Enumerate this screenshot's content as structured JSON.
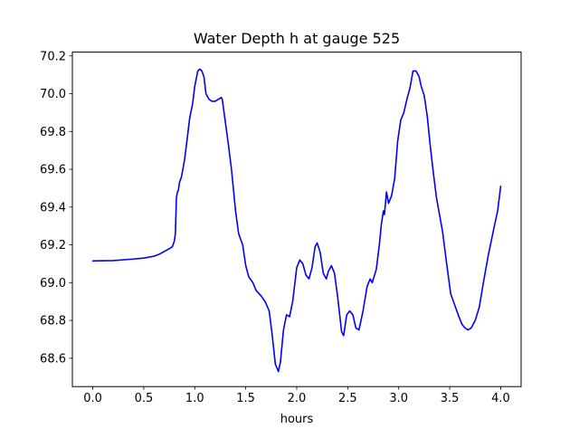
{
  "chart_data": {
    "type": "line",
    "title": "Water Depth h at gauge 525",
    "xlabel": "hours",
    "ylabel": "",
    "xlim": [
      -0.2,
      4.2
    ],
    "ylim": [
      68.45,
      70.22
    ],
    "grid": false,
    "legend": "none",
    "x_ticks": [
      {
        "value": 0.0,
        "label": "0.0"
      },
      {
        "value": 0.5,
        "label": "0.5"
      },
      {
        "value": 1.0,
        "label": "1.0"
      },
      {
        "value": 1.5,
        "label": "1.5"
      },
      {
        "value": 2.0,
        "label": "2.0"
      },
      {
        "value": 2.5,
        "label": "2.5"
      },
      {
        "value": 3.0,
        "label": "3.0"
      },
      {
        "value": 3.5,
        "label": "3.5"
      },
      {
        "value": 4.0,
        "label": "4.0"
      }
    ],
    "y_ticks": [
      {
        "value": 68.6,
        "label": "68.6"
      },
      {
        "value": 68.8,
        "label": "68.8"
      },
      {
        "value": 69.0,
        "label": "69.0"
      },
      {
        "value": 69.2,
        "label": "69.2"
      },
      {
        "value": 69.4,
        "label": "69.4"
      },
      {
        "value": 69.6,
        "label": "69.6"
      },
      {
        "value": 69.8,
        "label": "69.8"
      },
      {
        "value": 70.0,
        "label": "70.0"
      },
      {
        "value": 70.2,
        "label": "70.2"
      }
    ],
    "series": [
      {
        "color": "#0000ff",
        "x": [
          0.0,
          0.2,
          0.4,
          0.5,
          0.6,
          0.65,
          0.7,
          0.75,
          0.78,
          0.8,
          0.81,
          0.82,
          0.83,
          0.84,
          0.85,
          0.87,
          0.9,
          0.93,
          0.95,
          0.98,
          1.0,
          1.03,
          1.05,
          1.07,
          1.09,
          1.11,
          1.14,
          1.17,
          1.2,
          1.23,
          1.26,
          1.27,
          1.3,
          1.33,
          1.36,
          1.4,
          1.43,
          1.47,
          1.5,
          1.53,
          1.57,
          1.6,
          1.65,
          1.69,
          1.73,
          1.76,
          1.79,
          1.82,
          1.84,
          1.87,
          1.9,
          1.93,
          1.96,
          2.0,
          2.03,
          2.06,
          2.09,
          2.12,
          2.15,
          2.18,
          2.2,
          2.23,
          2.26,
          2.29,
          2.31,
          2.34,
          2.37,
          2.4,
          2.44,
          2.46,
          2.49,
          2.52,
          2.55,
          2.58,
          2.61,
          2.65,
          2.69,
          2.72,
          2.74,
          2.78,
          2.81,
          2.83,
          2.85,
          2.86,
          2.88,
          2.9,
          2.93,
          2.96,
          2.99,
          3.02,
          3.05,
          3.08,
          3.11,
          3.14,
          3.17,
          3.2,
          3.22,
          3.25,
          3.28,
          3.31,
          3.34,
          3.37,
          3.4,
          3.43,
          3.47,
          3.51,
          3.55,
          3.59,
          3.62,
          3.65,
          3.68,
          3.71,
          3.75,
          3.79,
          3.83,
          3.88,
          3.93,
          3.97,
          4.0
        ],
        "y": [
          69.115,
          69.117,
          69.125,
          69.13,
          69.14,
          69.15,
          69.165,
          69.18,
          69.19,
          69.22,
          69.26,
          69.45,
          69.48,
          69.49,
          69.53,
          69.56,
          69.65,
          69.78,
          69.87,
          69.95,
          70.04,
          70.12,
          70.13,
          70.12,
          70.09,
          70.0,
          69.97,
          69.96,
          69.96,
          69.97,
          69.98,
          69.97,
          69.85,
          69.73,
          69.6,
          69.38,
          69.26,
          69.2,
          69.09,
          69.03,
          69.0,
          68.96,
          68.93,
          68.9,
          68.85,
          68.72,
          68.57,
          68.53,
          68.58,
          68.75,
          68.83,
          68.82,
          68.9,
          69.08,
          69.12,
          69.1,
          69.04,
          69.02,
          69.08,
          69.19,
          69.21,
          69.16,
          69.05,
          69.02,
          69.06,
          69.09,
          69.05,
          68.93,
          68.74,
          68.72,
          68.83,
          68.85,
          68.83,
          68.76,
          68.75,
          68.85,
          68.98,
          69.02,
          69.0,
          69.07,
          69.2,
          69.31,
          69.38,
          69.36,
          69.48,
          69.42,
          69.46,
          69.55,
          69.75,
          69.86,
          69.9,
          69.97,
          70.03,
          70.12,
          70.12,
          70.09,
          70.04,
          69.99,
          69.88,
          69.72,
          69.58,
          69.45,
          69.36,
          69.27,
          69.1,
          68.94,
          68.88,
          68.82,
          68.78,
          68.76,
          68.75,
          68.76,
          68.8,
          68.87,
          69.0,
          69.15,
          69.28,
          69.38,
          69.51
        ]
      }
    ]
  }
}
